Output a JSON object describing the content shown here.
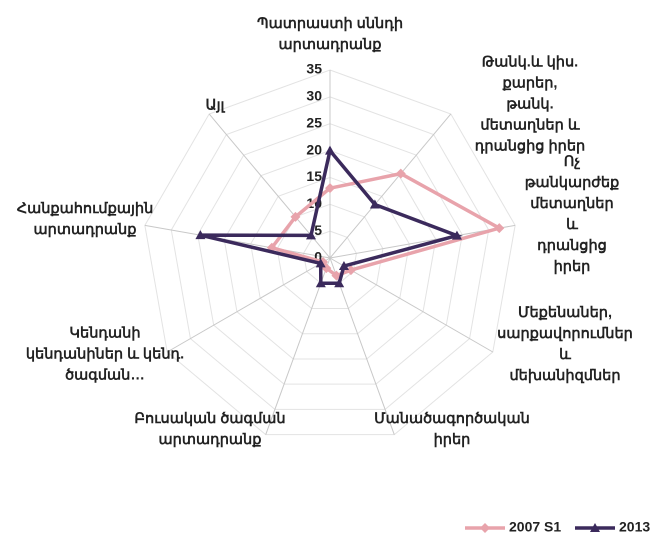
{
  "chart_data": {
    "type": "radar",
    "categories": [
      "Պատրաստի սննդի\nարտադրանք",
      "Թանկ.և կիս. քարեր,\nթանկ. մետաղներ և\nդրանցից իրեր",
      "Ոչ թանկարժեք\nմետաղներ և\nդրանցից իրեր",
      "Մեքենաներ,\nսարքավորումներ և\nմեխանիզմներ",
      "Մանածագործական\nիրեր",
      "Բուսական ծագման\nարտադրանք",
      "Կենդանի\nկենդանիներ և կենդ.\nծագման…",
      "Հանքահումքային\nարտադրանք",
      "Այլ"
    ],
    "series": [
      {
        "name": "2007 S1",
        "color": "#e8a3ab",
        "values": [
          13,
          20.5,
          32,
          4.5,
          3.5,
          2,
          1.5,
          11,
          10
        ]
      },
      {
        "name": "2013",
        "color": "#3b2a5c",
        "values": [
          20,
          13,
          24,
          3,
          5,
          5,
          2,
          24.5,
          5.5
        ]
      }
    ],
    "ylim": [
      0,
      35
    ],
    "yticks": [
      0,
      5,
      10,
      15,
      20,
      25,
      30,
      35
    ],
    "grid": true,
    "legend": "bottom-right"
  }
}
